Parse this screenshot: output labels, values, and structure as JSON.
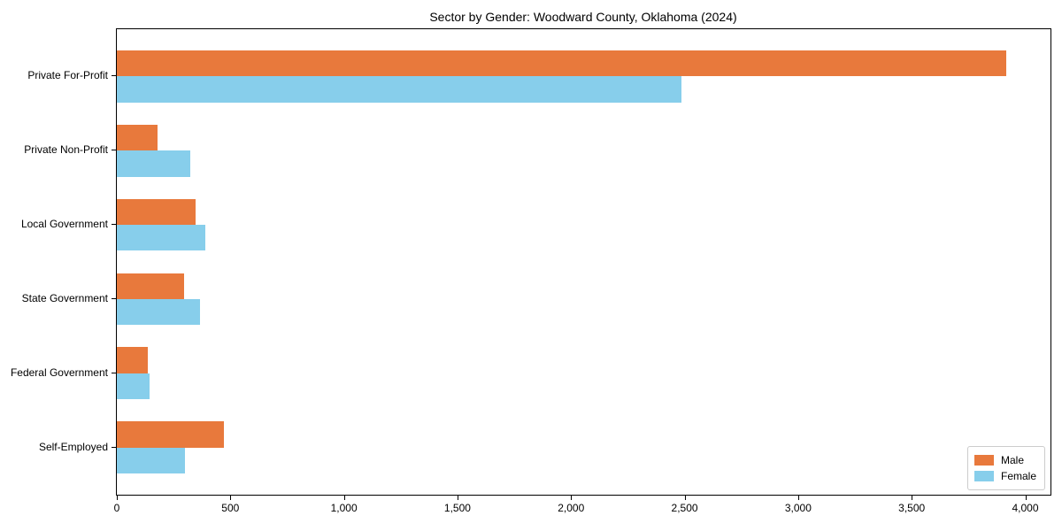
{
  "chart_data": {
    "type": "bar",
    "orientation": "horizontal",
    "title": "Sector by Gender: Woodward County, Oklahoma (2024)",
    "categories": [
      "Private For-Profit",
      "Private Non-Profit",
      "Local Government",
      "State Government",
      "Federal Government",
      "Self-Employed"
    ],
    "series": [
      {
        "name": "Male",
        "color": "#e8793c",
        "values": [
          3915,
          180,
          345,
          295,
          135,
          470
        ]
      },
      {
        "name": "Female",
        "color": "#87ceeb",
        "values": [
          2485,
          325,
          390,
          365,
          145,
          300
        ]
      }
    ],
    "xlabel": "",
    "ylabel": "",
    "xlim": [
      0,
      4111
    ],
    "xticks": [
      0,
      500,
      1000,
      1500,
      2000,
      2500,
      3000,
      3500,
      4000
    ],
    "grid": false,
    "legend_position": "lower right",
    "bar_height_fraction": 0.35,
    "y_margin_fraction": 0.05
  }
}
